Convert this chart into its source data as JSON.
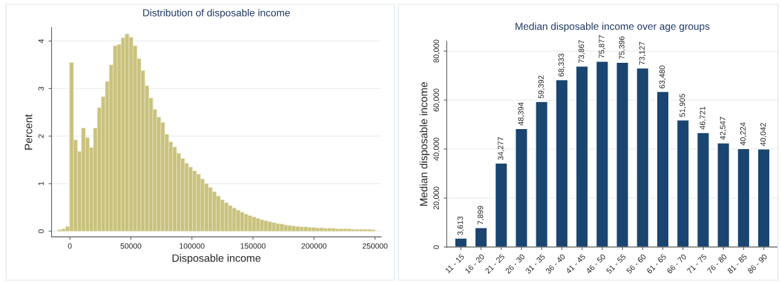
{
  "chart_data": [
    {
      "type": "histogram",
      "title": "Distribution of disposable income",
      "xlabel": "Disposable income",
      "ylabel": "Percent",
      "color": "#c9c27e",
      "bins": [
        -10000,
        -6750,
        -3500,
        -250,
        3000,
        6250,
        9500,
        12750,
        16000,
        19250,
        22500,
        25750,
        29000,
        32250,
        35500,
        38750,
        42000,
        45250,
        48500,
        51750,
        55000,
        58250,
        61500,
        64750,
        68000,
        71250,
        74500,
        77750,
        81000,
        84250,
        87500,
        90750,
        94000,
        97250,
        100500,
        103750,
        107000,
        110250,
        113500,
        116750,
        120000,
        123250,
        126500,
        129750,
        133000,
        136250,
        139500,
        142750,
        146000,
        149250,
        152500,
        155750,
        159000,
        162250,
        165500,
        168750,
        172000,
        175250,
        178500,
        181750,
        185000,
        188250,
        191500,
        194750,
        198000,
        201250,
        204500,
        207750,
        211000,
        214250,
        217500,
        220750,
        224000,
        227250,
        230500,
        233750,
        237000,
        240250,
        243500,
        246750,
        250000
      ],
      "values": [
        0.03,
        0.05,
        0.1,
        3.55,
        1.92,
        1.68,
        2.17,
        1.97,
        1.76,
        2.17,
        2.6,
        2.83,
        3.15,
        3.5,
        3.9,
        3.93,
        4.07,
        4.15,
        4.08,
        3.9,
        3.63,
        3.38,
        3.06,
        2.8,
        2.56,
        2.4,
        2.29,
        2.04,
        1.88,
        1.77,
        1.64,
        1.53,
        1.43,
        1.35,
        1.27,
        1.2,
        1.1,
        1.0,
        0.92,
        0.83,
        0.74,
        0.66,
        0.6,
        0.54,
        0.49,
        0.44,
        0.4,
        0.36,
        0.33,
        0.3,
        0.27,
        0.24,
        0.22,
        0.2,
        0.18,
        0.16,
        0.15,
        0.13,
        0.12,
        0.11,
        0.1,
        0.09,
        0.09,
        0.08,
        0.08,
        0.07,
        0.07,
        0.06,
        0.06,
        0.06,
        0.05,
        0.05,
        0.05,
        0.05,
        0.04,
        0.04,
        0.04,
        0.04,
        0.04,
        0.03
      ],
      "xlim": [
        -15000,
        255000
      ],
      "xticks": [
        0,
        50000,
        100000,
        150000,
        200000,
        250000
      ],
      "ylim": [
        -0.12,
        4.28
      ],
      "yticks": [
        0,
        1,
        2,
        3,
        4
      ],
      "grid": "y"
    },
    {
      "type": "bar",
      "title": "Median disposable income over age groups",
      "ylabel": "Median disposable income",
      "color": "#1a4570",
      "categories": [
        "11 - 15",
        "16 - 20",
        "21 - 25",
        "26 - 30",
        "31 - 35",
        "36 - 40",
        "41 - 45",
        "46 - 50",
        "51 - 55",
        "56 - 60",
        "61 - 65",
        "66 - 70",
        "71 - 75",
        "76 - 80",
        "81 - 85",
        "86 - 90"
      ],
      "values": [
        3613,
        7899,
        34277,
        48394,
        59392,
        68333,
        73867,
        75877,
        75396,
        73127,
        63480,
        51905,
        46721,
        42547,
        40224,
        40042
      ],
      "ylim": [
        0,
        84000
      ],
      "yticks": [
        0,
        {
          "value": 20000,
          "label": "20,000"
        },
        {
          "value": 40000,
          "label": "40,000"
        },
        {
          "value": 60000,
          "label": "60,000"
        },
        {
          "value": 80000,
          "label": "80,000"
        }
      ],
      "value_labels": [
        "3,613",
        "7,899",
        "34,277",
        "48,394",
        "59,392",
        "68,333",
        "73,867",
        "75,877",
        "75,396",
        "73,127",
        "63,480",
        "51,905",
        "46,721",
        "42,547",
        "40,224",
        "40,042"
      ],
      "grid": "y"
    }
  ]
}
